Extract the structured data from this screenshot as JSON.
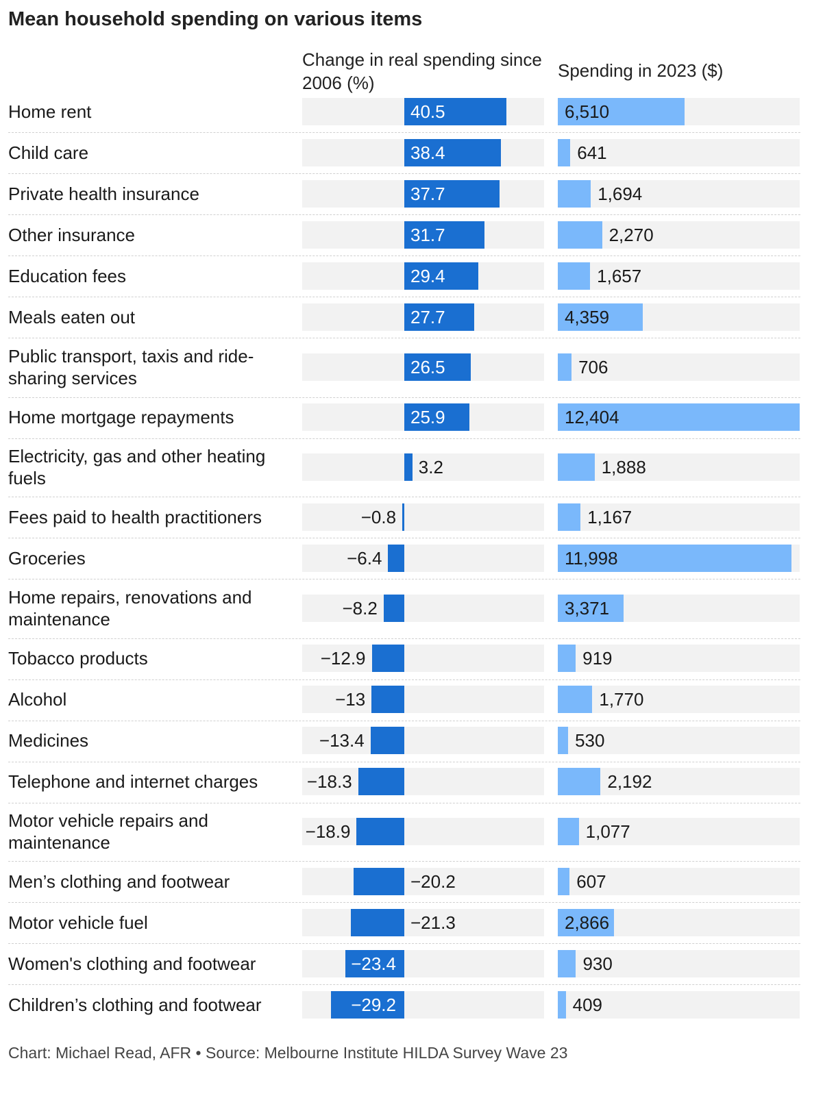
{
  "title": "Mean household spending on various items",
  "footer": "Chart: Michael Read, AFR • Source: Melbourne Institute HILDA Survey Wave 23",
  "colors": {
    "change_bar": "#1a6fd1",
    "spend_bar": "#7ab8fb",
    "track": "#f2f2f2"
  },
  "chart_data": {
    "type": "bar",
    "orientation": "horizontal",
    "column_headers": [
      "Change in real spending since 2006 (%)",
      "Spending in 2023 ($)"
    ],
    "categories": [
      "Home rent",
      "Child care",
      "Private health insurance",
      "Other insurance",
      "Education fees",
      "Meals eaten out",
      "Public transport, taxis and ride-sharing services",
      "Home mortgage repayments",
      "Electricity, gas and other heating fuels",
      "Fees paid to health practitioners",
      "Groceries",
      "Home repairs, renovations and maintenance",
      "Tobacco products",
      "Alcohol",
      "Medicines",
      "Telephone and internet charges",
      "Motor vehicle repairs and maintenance",
      "Men’s clothing and footwear",
      "Motor vehicle fuel",
      "Women's clothing and footwear",
      "Children’s clothing and footwear"
    ],
    "series": [
      {
        "values": [
          40.5,
          38.4,
          37.7,
          31.7,
          29.4,
          27.7,
          26.5,
          25.9,
          3.2,
          -0.8,
          -6.4,
          -8.2,
          -12.9,
          -13,
          -13.4,
          -18.3,
          -18.9,
          -20.2,
          -21.3,
          -23.4,
          -29.2
        ],
        "labels": [
          "40.5",
          "38.4",
          "37.7",
          "31.7",
          "29.4",
          "27.7",
          "26.5",
          "25.9",
          "3.2",
          "−0.8",
          "−6.4",
          "−8.2",
          "−12.9",
          "−13",
          "−13.4",
          "−18.3",
          "−18.9",
          "−20.2",
          "−21.3",
          "−23.4",
          "−29.2"
        ]
      },
      {
        "values": [
          6510,
          641,
          1694,
          2270,
          1657,
          4359,
          706,
          12404,
          1888,
          1167,
          11998,
          3371,
          919,
          1770,
          530,
          2192,
          1077,
          607,
          2866,
          930,
          409
        ],
        "labels": [
          "6,510",
          "641",
          "1,694",
          "2,270",
          "1,657",
          "4,359",
          "706",
          "12,404",
          "1,888",
          "1,167",
          "11,998",
          "3,371",
          "919",
          "1,770",
          "530",
          "2,192",
          "1,077",
          "607",
          "2,866",
          "930",
          "409"
        ]
      }
    ],
    "change_range": [
      -29.2,
      40.5
    ],
    "spend_range": [
      0,
      12404
    ]
  }
}
